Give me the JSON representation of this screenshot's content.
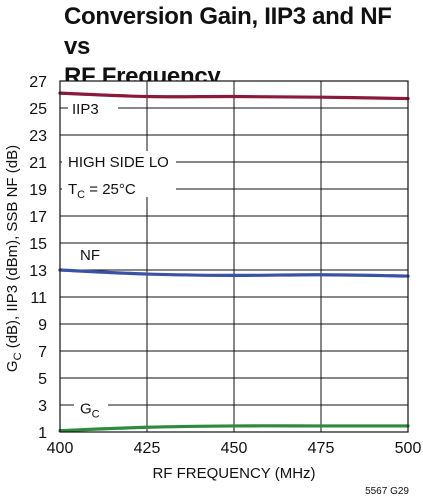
{
  "chart_data": {
    "type": "line",
    "title_line1": "Conversion Gain, IIP3 and NF vs",
    "title_line2": "RF Frequency",
    "xlabel": "RF FREQUENCY (MHz)",
    "ylabel_g": "G",
    "ylabel_sub": "C",
    "ylabel_rest": " (dB), IIP3 (dBm), SSB NF (dB)",
    "xlim": [
      400,
      500
    ],
    "ylim": [
      1,
      27
    ],
    "xticks": [
      400,
      425,
      450,
      475,
      500
    ],
    "yticks": [
      1,
      3,
      5,
      7,
      9,
      11,
      13,
      15,
      17,
      19,
      21,
      23,
      25,
      27
    ],
    "grid": true,
    "series": [
      {
        "name": "IIP3",
        "color": "#8b1a3a",
        "points": [
          [
            400,
            26.1
          ],
          [
            425,
            25.85
          ],
          [
            450,
            25.85
          ],
          [
            475,
            25.8
          ],
          [
            500,
            25.7
          ]
        ]
      },
      {
        "name": "NF",
        "color": "#3a52a4",
        "points": [
          [
            400,
            13.0
          ],
          [
            425,
            12.7
          ],
          [
            450,
            12.6
          ],
          [
            475,
            12.65
          ],
          [
            500,
            12.55
          ]
        ]
      },
      {
        "name": "GC",
        "color": "#2e8b3e",
        "points": [
          [
            400,
            1.1
          ],
          [
            425,
            1.35
          ],
          [
            450,
            1.45
          ],
          [
            475,
            1.45
          ],
          [
            500,
            1.45
          ]
        ]
      }
    ],
    "annotations": {
      "iip3": "IIP3",
      "nf": "NF",
      "gc_main": "G",
      "gc_sub": "C",
      "condition1": "HIGH SIDE LO",
      "condition2_t": "T",
      "condition2_sub": "C",
      "condition2_rest": " = 25°C"
    },
    "footnote": "5567 G29"
  }
}
